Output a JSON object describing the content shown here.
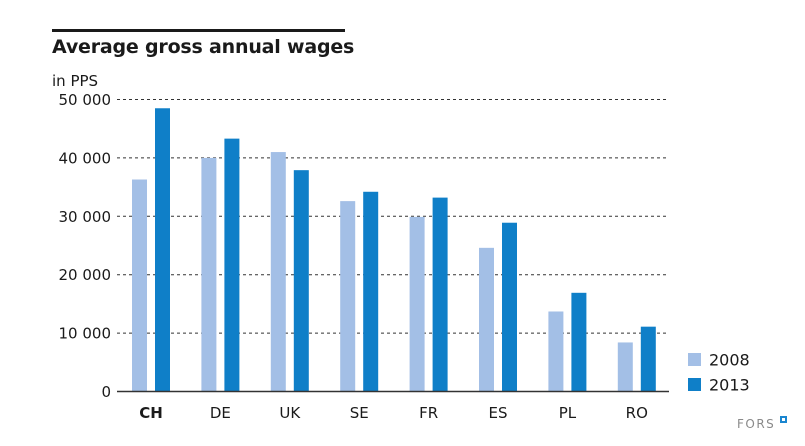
{
  "chart_data": {
    "type": "bar",
    "title": "Average gross annual wages",
    "ylabel": "in PPS",
    "xlabel": "",
    "categories": [
      "CH",
      "DE",
      "UK",
      "SE",
      "FR",
      "ES",
      "PL",
      "RO"
    ],
    "highlight_category": "CH",
    "series": [
      {
        "name": "2008",
        "color": "#a3bfe6",
        "values": [
          36300,
          40000,
          41000,
          32600,
          29900,
          24600,
          13700,
          8400
        ]
      },
      {
        "name": "2013",
        "color": "#0f7fc8",
        "values": [
          48500,
          43300,
          37900,
          34200,
          33200,
          28900,
          16900,
          11100
        ]
      }
    ],
    "ylim": [
      0,
      50000
    ],
    "yticks": [
      0,
      10000,
      20000,
      30000,
      40000,
      50000
    ],
    "ytick_labels": [
      "0",
      "10 000",
      "20 000",
      "30 000",
      "40 000",
      "50 000"
    ],
    "grid": true,
    "legend_position": "bottom-right"
  },
  "logo": {
    "text": "FORS",
    "accent": "#1a86d0"
  }
}
